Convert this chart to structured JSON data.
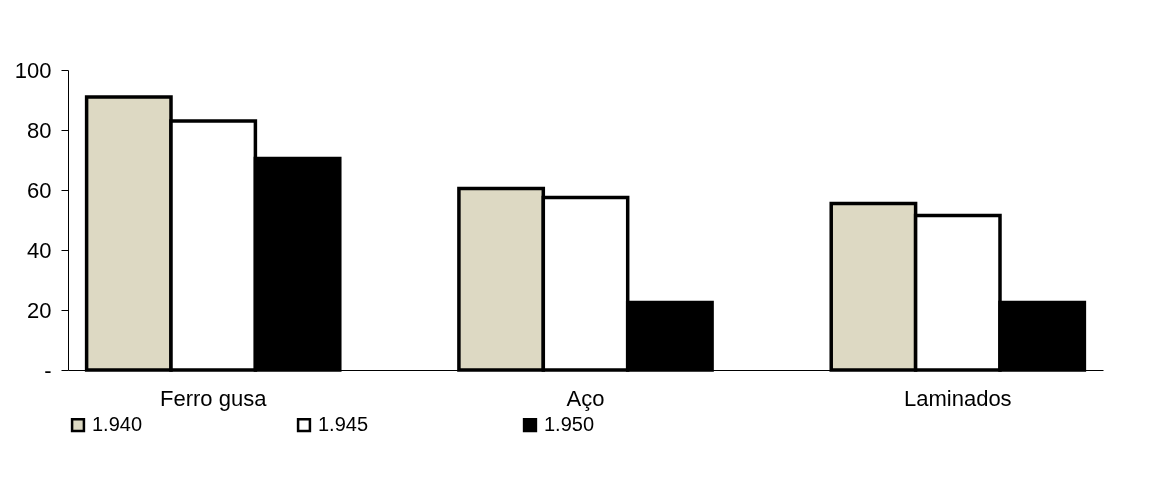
{
  "chart_data": {
    "type": "bar",
    "categories": [
      "Ferro gusa",
      "Aço",
      "Laminados"
    ],
    "series": [
      {
        "name": "1.940",
        "color": "#ddd9c3",
        "values": [
          91,
          60.5,
          55.5
        ]
      },
      {
        "name": "1.945",
        "color": "#ffffff",
        "values": [
          83,
          57.5,
          51.5
        ]
      },
      {
        "name": "1.950",
        "color": "#000000",
        "values": [
          70.5,
          22.5,
          22.5
        ]
      }
    ],
    "ylim": [
      0,
      100
    ],
    "yticks": [
      {
        "value": 0,
        "label": "-"
      },
      20,
      40,
      60,
      80,
      100
    ],
    "grid": false,
    "legend": "bottom"
  }
}
